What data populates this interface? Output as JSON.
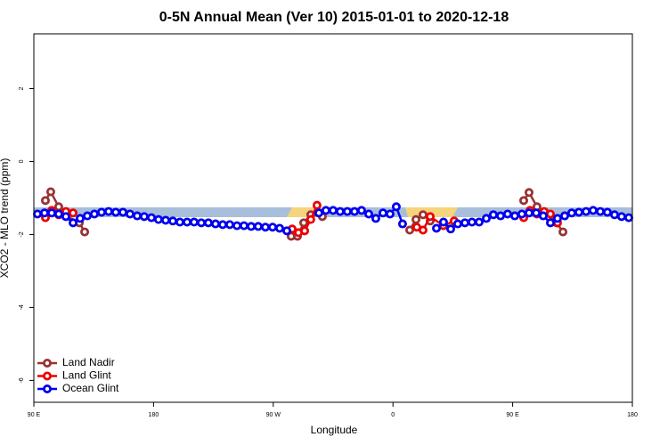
{
  "chart_data": {
    "type": "line",
    "title": "0-5N Annual Mean (Ver 10)   2015-01-01 to 2020-12-18",
    "x_label": "Longitude",
    "y_label": "XCO2 - MLO trend (ppm)",
    "xlim": [
      90,
      540
    ],
    "xticks": [
      {
        "value": 90,
        "label": "90 E"
      },
      {
        "value": 180,
        "label": "180"
      },
      {
        "value": 270,
        "label": "90 W"
      },
      {
        "value": 360,
        "label": "0"
      },
      {
        "value": 450,
        "label": "90 E"
      },
      {
        "value": 540,
        "label": "180"
      }
    ],
    "ylim": [
      -6.6,
      3.5
    ],
    "yticks": [
      -6,
      -4,
      -2,
      0,
      2
    ],
    "legend": "bottom-left",
    "series": [
      {
        "name": "Land Nadir",
        "color": "#993333",
        "x": [
          98.7,
          102.7,
          108.7,
          114.1,
          124.2,
          128.2,
          null,
          283.5,
          288.2,
          292.9,
          298.2,
          306.9,
          null,
          372.6,
          377.3,
          382.6,
          388.0,
          null,
          458.3,
          462.3,
          468.3,
          474.4,
          483.1,
          487.8
        ],
        "values": [
          -1.07,
          -0.83,
          -1.24,
          -1.49,
          -1.68,
          -1.93,
          null,
          -2.05,
          -2.05,
          -1.68,
          -1.46,
          -1.51,
          null,
          -1.88,
          -1.59,
          -1.46,
          -1.63,
          null,
          -1.07,
          -0.85,
          -1.24,
          -1.44,
          -1.68,
          -1.93
        ]
      },
      {
        "name": "Land Glint",
        "color": "#ee0000",
        "x": [
          98.7,
          103.4,
          108.7,
          114.1,
          119.5,
          null,
          284.2,
          288.9,
          293.6,
          298.2,
          302.9,
          null,
          377.9,
          382.6,
          388.0,
          398.0,
          406.0,
          null,
          458.3,
          463.0,
          468.3,
          473.7,
          478.4,
          483.7
        ],
        "values": [
          -1.54,
          -1.34,
          -1.46,
          -1.37,
          -1.41,
          null,
          -1.85,
          -1.95,
          -1.9,
          -1.59,
          -1.2,
          null,
          -1.8,
          -1.88,
          -1.51,
          -1.76,
          -1.63,
          null,
          -1.54,
          -1.34,
          -1.44,
          -1.37,
          -1.44,
          -1.68
        ]
      },
      {
        "name": "Ocean Glint",
        "color": "#0000ee",
        "x": [
          92.7,
          98.0,
          103.4,
          108.7,
          114.1,
          119.5,
          124.8,
          130.2,
          135.5,
          140.9,
          146.2,
          151.6,
          157.0,
          162.3,
          167.7,
          173.0,
          178.4,
          183.7,
          189.1,
          194.5,
          199.8,
          205.2,
          210.5,
          215.9,
          221.2,
          226.6,
          232.0,
          237.3,
          242.7,
          248.0,
          253.4,
          258.7,
          264.1,
          269.5,
          274.8,
          280.2,
          null,
          304.3,
          309.6,
          315.0,
          320.3,
          325.7,
          331.1,
          336.4,
          341.8,
          347.1,
          352.5,
          357.8,
          362.5,
          367.2,
          null,
          392.7,
          398.0,
          403.4,
          408.7,
          414.1,
          419.4,
          424.8,
          430.2,
          435.5,
          440.9,
          446.2,
          451.6,
          456.9,
          462.3,
          467.7,
          473.0,
          478.4,
          483.7,
          489.1,
          494.4,
          499.8,
          505.2,
          510.5,
          515.9,
          521.2,
          526.6,
          531.9,
          537.3
        ],
        "values": [
          -1.44,
          -1.41,
          -1.41,
          -1.44,
          -1.51,
          -1.68,
          -1.56,
          -1.49,
          -1.44,
          -1.39,
          -1.37,
          -1.39,
          -1.39,
          -1.44,
          -1.49,
          -1.51,
          -1.54,
          -1.59,
          -1.61,
          -1.63,
          -1.66,
          -1.66,
          -1.66,
          -1.68,
          -1.68,
          -1.71,
          -1.73,
          -1.73,
          -1.76,
          -1.76,
          -1.78,
          -1.78,
          -1.8,
          -1.8,
          -1.83,
          -1.9,
          null,
          -1.41,
          -1.34,
          -1.34,
          -1.37,
          -1.37,
          -1.37,
          -1.34,
          -1.44,
          -1.56,
          -1.41,
          -1.44,
          -1.24,
          -1.71,
          null,
          -1.83,
          -1.66,
          -1.85,
          -1.71,
          -1.68,
          -1.66,
          -1.66,
          -1.56,
          -1.46,
          -1.49,
          -1.44,
          -1.49,
          -1.44,
          -1.41,
          -1.41,
          -1.49,
          -1.68,
          -1.56,
          -1.49,
          -1.41,
          -1.39,
          -1.37,
          -1.34,
          -1.37,
          -1.39,
          -1.46,
          -1.51,
          -1.54
        ]
      }
    ]
  }
}
